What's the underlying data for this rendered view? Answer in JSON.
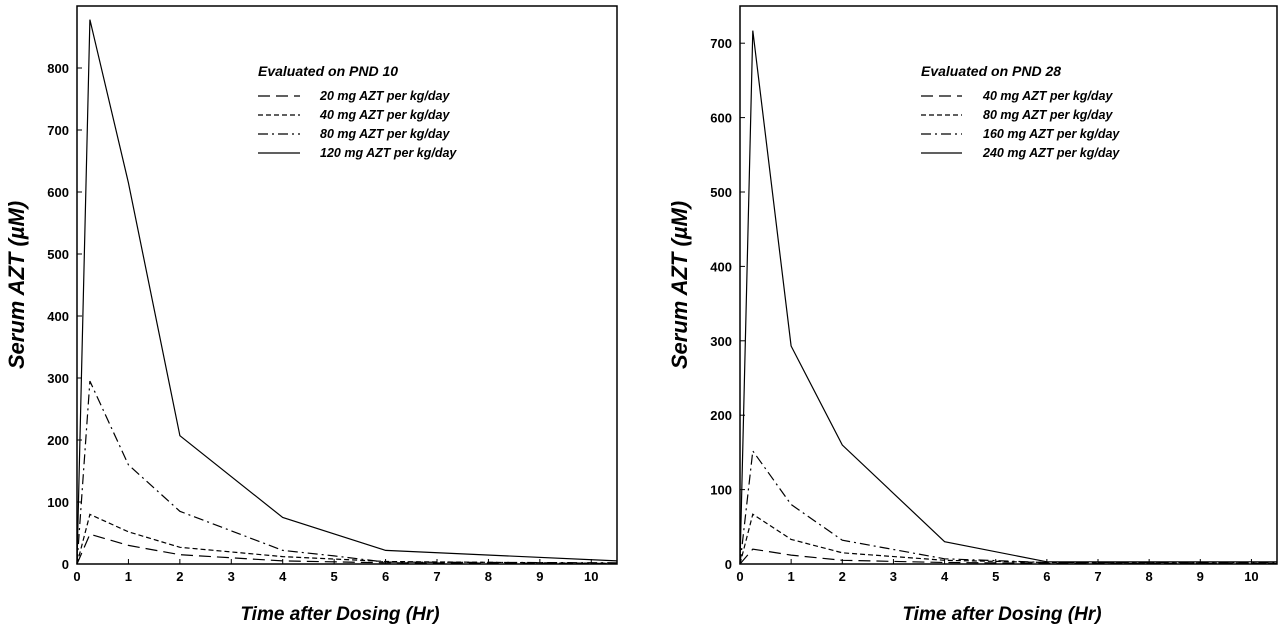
{
  "chart_data": [
    {
      "type": "line",
      "title": "Evaluated on PND 10",
      "xlabel": "Time after Dosing (Hr)",
      "ylabel": "Serum AZT (µM)",
      "xlim": [
        0,
        10.5
      ],
      "ylim": [
        0,
        900
      ],
      "xticks": [
        0,
        1,
        2,
        3,
        4,
        5,
        6,
        7,
        8,
        9,
        10
      ],
      "yticks": [
        0,
        100,
        200,
        300,
        400,
        500,
        600,
        700,
        800
      ],
      "legend_position": "top-center",
      "grid": false,
      "series": [
        {
          "name": "20 mg AZT per kg/day",
          "dash": "long-dash",
          "x": [
            0,
            0.25,
            1,
            2,
            4,
            6,
            10.5
          ],
          "y": [
            0,
            48,
            30,
            15,
            5,
            2,
            1
          ]
        },
        {
          "name": "40 mg AZT per kg/day",
          "dash": "short-dash",
          "x": [
            0,
            0.25,
            1,
            2,
            4,
            6,
            10.5
          ],
          "y": [
            0,
            80,
            52,
            27,
            12,
            4,
            1
          ]
        },
        {
          "name": "80 mg AZT per kg/day",
          "dash": "dash-dot",
          "x": [
            0,
            0.25,
            1,
            2,
            4,
            5,
            6,
            10.5
          ],
          "y": [
            0,
            295,
            160,
            85,
            22,
            13,
            3,
            2
          ]
        },
        {
          "name": "120 mg AZT per kg/day",
          "dash": "solid",
          "x": [
            0,
            0.25,
            1,
            2,
            4,
            6,
            10.5
          ],
          "y": [
            0,
            878,
            615,
            207,
            75,
            22,
            5
          ]
        }
      ]
    },
    {
      "type": "line",
      "title": "Evaluated on PND 28",
      "xlabel": "Time after Dosing (Hr)",
      "ylabel": "Serum AZT (µM)",
      "xlim": [
        0,
        10.5
      ],
      "ylim": [
        0,
        750
      ],
      "xticks": [
        0,
        1,
        2,
        3,
        4,
        5,
        6,
        7,
        8,
        9,
        10
      ],
      "yticks": [
        0,
        100,
        200,
        300,
        400,
        500,
        600,
        700
      ],
      "legend_position": "top-center",
      "grid": false,
      "series": [
        {
          "name": "40 mg AZT per kg/day",
          "dash": "long-dash",
          "x": [
            0,
            0.25,
            1,
            2,
            4,
            6,
            10.5
          ],
          "y": [
            0,
            20,
            12,
            5,
            2,
            1,
            1
          ]
        },
        {
          "name": "80 mg AZT per kg/day",
          "dash": "short-dash",
          "x": [
            0,
            0.25,
            1,
            2,
            4,
            6,
            10.5
          ],
          "y": [
            0,
            67,
            33,
            15,
            5,
            2,
            1
          ]
        },
        {
          "name": "160 mg AZT per kg/day",
          "dash": "dash-dot",
          "x": [
            0,
            0.25,
            1,
            2,
            4,
            6,
            10.5
          ],
          "y": [
            0,
            152,
            80,
            32,
            7,
            2,
            2
          ]
        },
        {
          "name": "240 mg AZT per kg/day",
          "dash": "solid",
          "x": [
            0,
            0.25,
            1,
            2,
            4,
            6,
            10.5
          ],
          "y": [
            0,
            717,
            293,
            160,
            30,
            3,
            3
          ]
        }
      ]
    }
  ]
}
